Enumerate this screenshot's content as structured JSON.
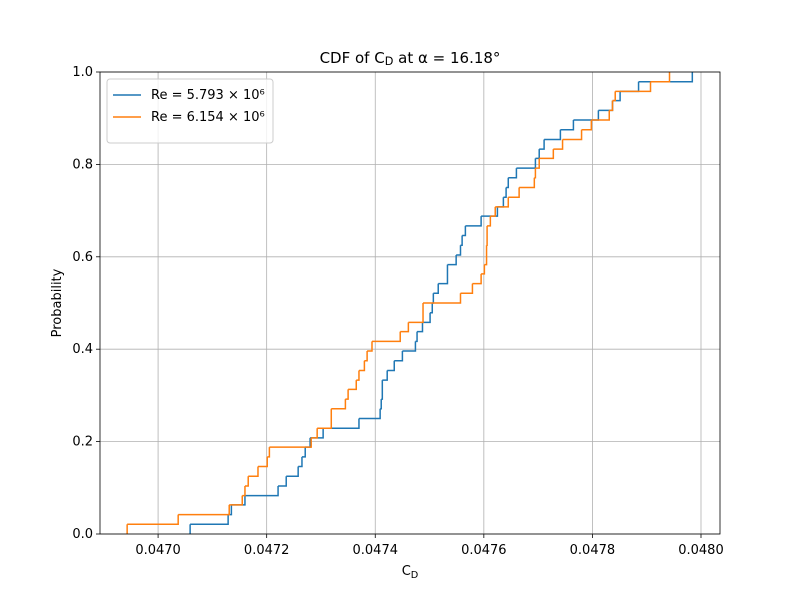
{
  "chart_data": {
    "type": "step",
    "title": "CDF of C_D at α = 16.18°",
    "xlabel": "C_D",
    "ylabel": "Probability",
    "xlim": [
      0.046893,
      0.048035
    ],
    "ylim": [
      0,
      1
    ],
    "xticks": [
      {
        "value": 0.047,
        "label": "0.0470"
      },
      {
        "value": 0.0472,
        "label": "0.0472"
      },
      {
        "value": 0.0474,
        "label": "0.0474"
      },
      {
        "value": 0.0476,
        "label": "0.0476"
      },
      {
        "value": 0.0478,
        "label": "0.0478"
      },
      {
        "value": 0.048,
        "label": "0.0480"
      }
    ],
    "yticks": [
      {
        "value": 0,
        "label": "0.0"
      },
      0.2,
      0.4,
      0.6,
      0.8,
      {
        "value": 1,
        "label": "1.0"
      }
    ],
    "grid": true,
    "legend": "upper left",
    "series": [
      {
        "name": "Re = 5.793 × 10⁶",
        "color": "#1f77b4",
        "x": [
          0.047059,
          0.047129,
          0.047135,
          0.04716,
          0.047221,
          0.047236,
          0.047258,
          0.047265,
          0.047271,
          0.04728,
          0.047304,
          0.04737,
          0.047409,
          0.047411,
          0.047413,
          0.047422,
          0.047435,
          0.04745,
          0.047474,
          0.047477,
          0.047487,
          0.047501,
          0.047505,
          0.047507,
          0.047516,
          0.047533,
          0.047549,
          0.047557,
          0.04756,
          0.047566,
          0.047595,
          0.047625,
          0.047636,
          0.047641,
          0.047645,
          0.04766,
          0.047695,
          0.047702,
          0.047711,
          0.047741,
          0.047765,
          0.047811,
          0.047837,
          0.047851,
          0.047885,
          0.047984
        ],
        "values": [
          0.021,
          0.042,
          0.063,
          0.083,
          0.104,
          0.125,
          0.146,
          0.167,
          0.188,
          0.208,
          0.229,
          0.25,
          0.271,
          0.292,
          0.333,
          0.354,
          0.375,
          0.396,
          0.417,
          0.438,
          0.458,
          0.479,
          0.5,
          0.521,
          0.542,
          0.583,
          0.604,
          0.625,
          0.646,
          0.667,
          0.688,
          0.708,
          0.729,
          0.75,
          0.771,
          0.792,
          0.813,
          0.833,
          0.854,
          0.875,
          0.896,
          0.917,
          0.938,
          0.958,
          0.979,
          1.0
        ]
      },
      {
        "name": "Re = 6.154 × 10⁶",
        "color": "#ff7f0e",
        "x": [
          0.046943,
          0.047037,
          0.047131,
          0.047155,
          0.04716,
          0.047166,
          0.047184,
          0.047201,
          0.047205,
          0.047282,
          0.047293,
          0.047319,
          0.047345,
          0.04735,
          0.047365,
          0.04737,
          0.04738,
          0.047385,
          0.047394,
          0.047446,
          0.047461,
          0.047488,
          0.047557,
          0.047579,
          0.047595,
          0.047601,
          0.047605,
          0.047606,
          0.047612,
          0.047621,
          0.047645,
          0.047665,
          0.047693,
          0.047695,
          0.047702,
          0.047728,
          0.047745,
          0.04778,
          0.047798,
          0.047831,
          0.047837,
          0.047842,
          0.047907,
          0.047942
        ],
        "values": [
          0.021,
          0.042,
          0.063,
          0.083,
          0.104,
          0.125,
          0.146,
          0.167,
          0.188,
          0.208,
          0.229,
          0.271,
          0.292,
          0.313,
          0.333,
          0.354,
          0.375,
          0.396,
          0.417,
          0.438,
          0.458,
          0.5,
          0.521,
          0.542,
          0.563,
          0.583,
          0.625,
          0.667,
          0.688,
          0.708,
          0.729,
          0.75,
          0.771,
          0.792,
          0.813,
          0.833,
          0.854,
          0.875,
          0.896,
          0.917,
          0.938,
          0.958,
          0.979,
          1.0
        ]
      }
    ]
  }
}
